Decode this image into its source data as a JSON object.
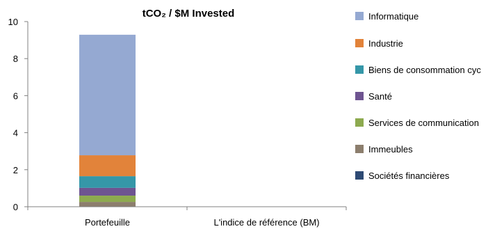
{
  "chart_data": {
    "type": "bar",
    "stacked": true,
    "title": "tCO₂ / $M Invested",
    "categories": [
      "Portefeuille",
      "L'indice de référence (BM)"
    ],
    "ylim": [
      0,
      10
    ],
    "yticks": [
      0,
      2,
      4,
      6,
      8,
      10
    ],
    "grid": false,
    "legend_position": "right",
    "series": [
      {
        "name": "Informatique",
        "color": "#95A9D2",
        "values": [
          6.51,
          0
        ]
      },
      {
        "name": "Industrie",
        "color": "#E2833A",
        "values": [
          1.13,
          0
        ]
      },
      {
        "name": "Biens de consommation cyc",
        "color": "#3597A8",
        "values": [
          0.63,
          0
        ]
      },
      {
        "name": "Santé",
        "color": "#6E5491",
        "values": [
          0.42,
          0
        ]
      },
      {
        "name": "Services de communication",
        "color": "#8DAA4F",
        "values": [
          0.34,
          0
        ]
      },
      {
        "name": "Immeubles",
        "color": "#8C7E6D",
        "values": [
          0.26,
          0
        ]
      },
      {
        "name": "Sociétés financières",
        "color": "#2E4A74",
        "values": [
          0.0,
          0
        ]
      }
    ]
  }
}
